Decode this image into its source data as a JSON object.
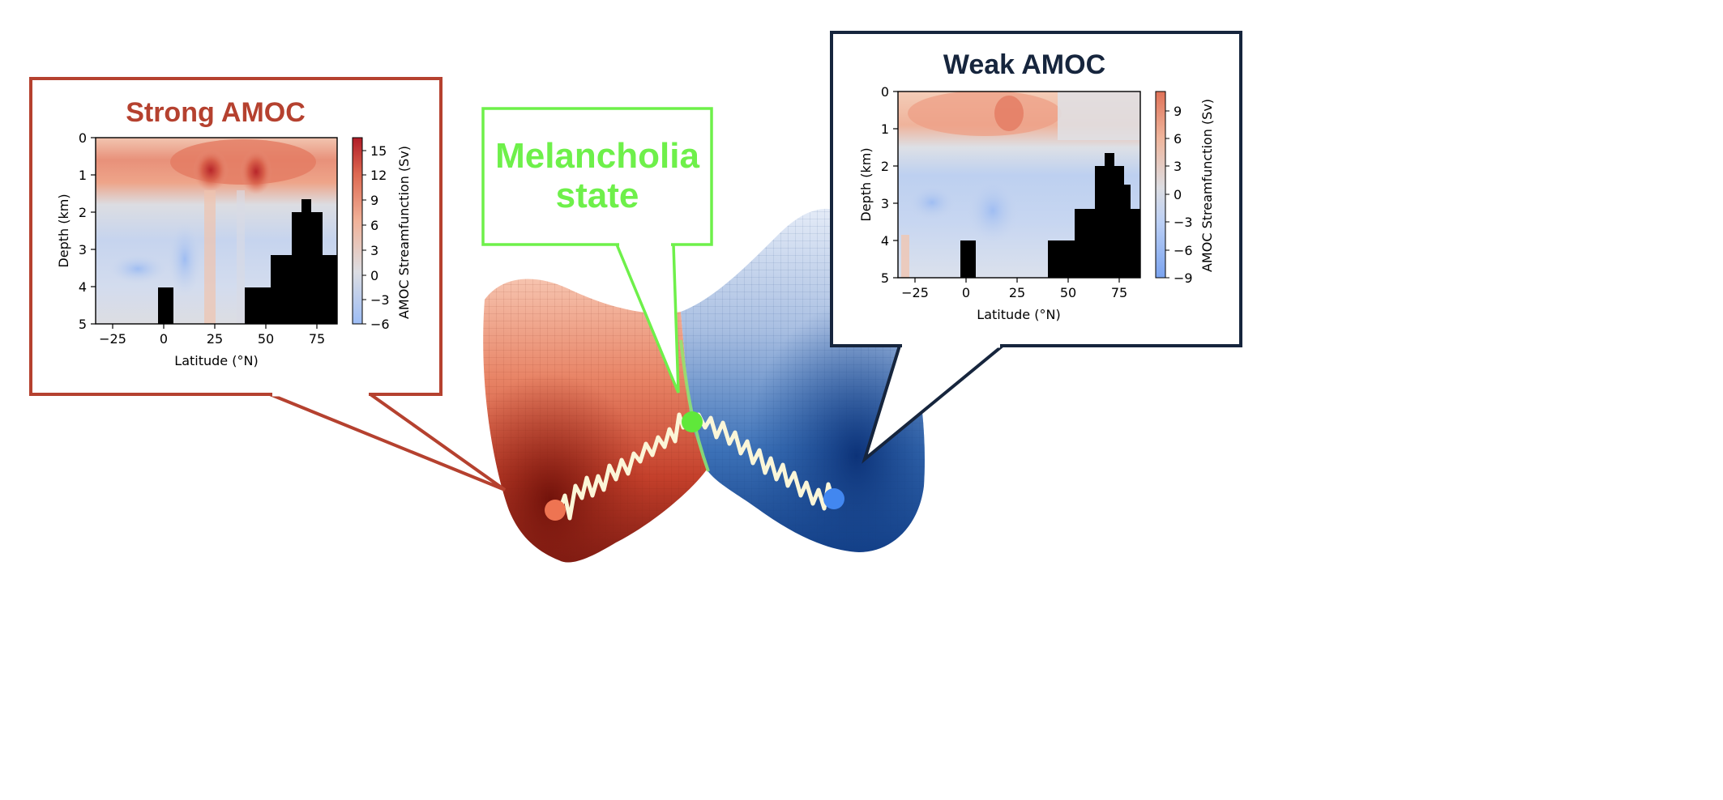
{
  "colors": {
    "strong": "#b5412f",
    "weak": "#16253d",
    "melancholia": "#6ef04a",
    "red_dot": "#ee7452",
    "blue_dot": "#4287f0",
    "green_dot": "#5fe83a",
    "path": "#fbf6d8"
  },
  "strong_panel": {
    "title": "Strong AMOC",
    "ylabel": "Depth (km)",
    "xlabel": "Latitude (°N)",
    "colorbar_label": "AMOC Streamfunction (Sv)",
    "xticks": [
      "−25",
      "0",
      "25",
      "50",
      "75"
    ],
    "yticks": [
      "0",
      "1",
      "2",
      "3",
      "4",
      "5"
    ],
    "cbar_ticks": [
      "15",
      "12",
      "9",
      "6",
      "3",
      "0",
      "−3",
      "−6"
    ]
  },
  "weak_panel": {
    "title": "Weak AMOC",
    "ylabel": "Depth (km)",
    "xlabel": "Latitude (°N)",
    "colorbar_label": "AMOC Streamfunction (Sv)",
    "xticks": [
      "−25",
      "0",
      "25",
      "50",
      "75"
    ],
    "yticks": [
      "0",
      "1",
      "2",
      "3",
      "4",
      "5"
    ],
    "cbar_ticks": [
      "9",
      "6",
      "3",
      "0",
      "−3",
      "−6",
      "−9"
    ]
  },
  "melancholia": {
    "line1": "Melancholia",
    "line2": "state"
  }
}
